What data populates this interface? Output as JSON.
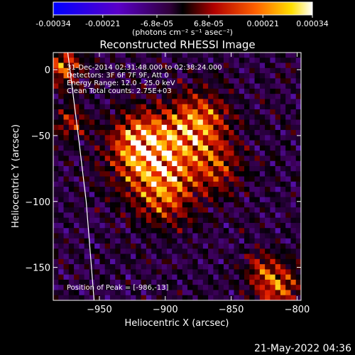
{
  "colorbar": {
    "tick_labels": [
      "-0.00034",
      "-0.00021",
      "-6.8e-05",
      "6.8e-05",
      "0.00021",
      "0.00034"
    ],
    "tick_values": [
      -0.00034,
      -0.00021,
      -6.8e-05,
      6.8e-05,
      0.00021,
      0.00034
    ],
    "range": [
      -0.00034,
      0.00034
    ],
    "units_label": "(photons cm⁻² s⁻¹ asec⁻²)"
  },
  "chart_data": {
    "type": "heatmap",
    "title": "Reconstructed RHESSI Image",
    "xlabel": "Heliocentric X (arcsec)",
    "ylabel": "Heliocentric Y (arcsec)",
    "xlim": [
      -985,
      -797
    ],
    "ylim": [
      -175,
      13
    ],
    "x_ticks": [
      -950,
      -900,
      -850,
      -800
    ],
    "x_tick_labels": [
      "−950",
      "−900",
      "−850",
      "−800"
    ],
    "y_ticks": [
      0,
      -50,
      -100,
      -150
    ],
    "y_tick_labels": [
      "0",
      "−50",
      "−100",
      "−150"
    ],
    "annotations": [
      "31-Dec-2014 02:31:48.000 to 02:38:24.000",
      "Detectors: 3F 6F 7F 9F, Att 0",
      "Energy Range: 12.0 - 25.0 keV",
      "Clean     Total counts: 2.75E+03"
    ],
    "peak_label": "Position of Peak = [-986,-13]",
    "peak_position": [
      -986,
      -13
    ],
    "limb_points": [
      [
        -974,
        13
      ],
      [
        -966,
        -50
      ],
      [
        -960,
        -100
      ],
      [
        -956,
        -150
      ],
      [
        -954,
        -175
      ]
    ],
    "sources": [
      {
        "x": -905,
        "y": -70,
        "amp": 1.0,
        "sigma": 22
      },
      {
        "x": -875,
        "y": -40,
        "amp": 0.9,
        "sigma": 16
      },
      {
        "x": -920,
        "y": -55,
        "amp": 0.75,
        "sigma": 15
      },
      {
        "x": -860,
        "y": -75,
        "amp": 0.55,
        "sigma": 14
      },
      {
        "x": -900,
        "y": -100,
        "amp": 0.5,
        "sigma": 14
      },
      {
        "x": -978,
        "y": 2,
        "amp": 0.85,
        "sigma": 10
      },
      {
        "x": -972,
        "y": -40,
        "amp": 0.55,
        "sigma": 9
      },
      {
        "x": -815,
        "y": -165,
        "amp": 0.85,
        "sigma": 12
      },
      {
        "x": -828,
        "y": -150,
        "amp": 0.45,
        "sigma": 9
      }
    ]
  },
  "footer": {
    "timestamp": "21-May-2022 04:36"
  }
}
